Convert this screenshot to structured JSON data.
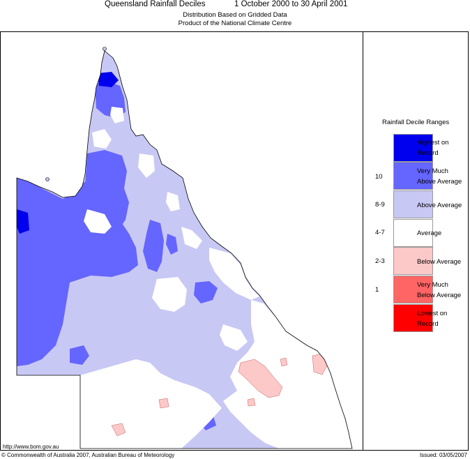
{
  "header": {
    "title": "Queensland Rainfall Deciles",
    "period": "1 October 2000 to 30 April 2001",
    "subtitle1": "Distribution Based on Gridded Data",
    "subtitle2": "Product of the National Climate Centre"
  },
  "legend": {
    "title": "Rainfall Decile Ranges",
    "items": [
      {
        "label1": "Highest on",
        "label2": "Record",
        "decile": "",
        "color": "#0000ee"
      },
      {
        "label1": "Very Much",
        "label2": "Above Average",
        "decile": "10",
        "color": "#6565ff"
      },
      {
        "label1": "Above Average",
        "label2": "",
        "decile": "8-9",
        "color": "#c8c8f5"
      },
      {
        "label1": "Average",
        "label2": "",
        "decile": "4-7",
        "color": "#ffffff"
      },
      {
        "label1": "Below Average",
        "label2": "",
        "decile": "2-3",
        "color": "#fcc8c8"
      },
      {
        "label1": "Very Much",
        "label2": "Below Average",
        "decile": "1",
        "color": "#ff6565"
      },
      {
        "label1": "Lowest on",
        "label2": "Record",
        "decile": "",
        "color": "#ff0000"
      }
    ]
  },
  "footer": {
    "url": "http://www.bom.gov.au",
    "copyright": "© Commonwealth of Australia 2007, Australian Bureau of Meteorology",
    "issued": "Issued: 03/05/2007"
  },
  "colors": {
    "highest": "#0000ee",
    "very_much_above": "#6565ff",
    "above": "#c8c8f5",
    "average": "#ffffff",
    "below": "#fcc8c8",
    "very_much_below": "#ff6565"
  }
}
